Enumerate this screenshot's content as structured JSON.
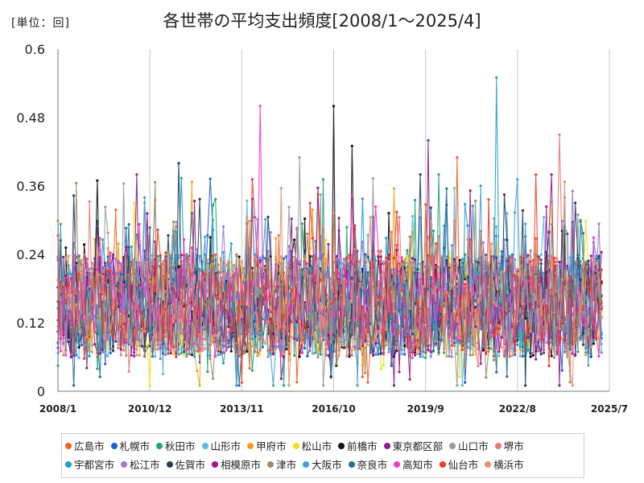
{
  "unit_label": "[単位：回]",
  "chart_data": {
    "type": "line",
    "title": "各世帯の平均支出頻度[2008/1～2025/4]",
    "xlabel": "",
    "ylabel": "",
    "x_start": "2008/1",
    "x_end": "2025/7",
    "x_ticks": [
      "2008/1",
      "2010/12",
      "2013/11",
      "2016/10",
      "2019/9",
      "2022/8",
      "2025/7"
    ],
    "y_ticks": [
      "0",
      "0.12",
      "0.24",
      "0.36",
      "0.48",
      "0.6"
    ],
    "ylim": [
      0,
      0.6
    ],
    "grid": "vertical",
    "legend_position": "bottom",
    "series": [
      {
        "name": "広島市",
        "color": "#f0621e"
      },
      {
        "name": "札幌市",
        "color": "#1f5fd6"
      },
      {
        "name": "秋田市",
        "color": "#1fa57a"
      },
      {
        "name": "山形市",
        "color": "#5bb8e8"
      },
      {
        "name": "甲府市",
        "color": "#f0a020"
      },
      {
        "name": "松山市",
        "color": "#f4e017"
      },
      {
        "name": "前橋市",
        "color": "#111111"
      },
      {
        "name": "東京都区部",
        "color": "#8b1e8b"
      },
      {
        "name": "山口市",
        "color": "#9a9a9a"
      },
      {
        "name": "堺市",
        "color": "#e87878"
      },
      {
        "name": "宇都宮市",
        "color": "#1ea0c8"
      },
      {
        "name": "松江市",
        "color": "#9a78d6"
      },
      {
        "name": "佐賀市",
        "color": "#1f3f5a"
      },
      {
        "name": "相模原市",
        "color": "#a0148c"
      },
      {
        "name": "津市",
        "color": "#a08c64"
      },
      {
        "name": "大阪市",
        "color": "#3ca0dc"
      },
      {
        "name": "奈良市",
        "color": "#2a6e8c"
      },
      {
        "name": "高知市",
        "color": "#f03cc8"
      },
      {
        "name": "仙台市",
        "color": "#ee3c28"
      },
      {
        "name": "横浜市",
        "color": "#e8906c"
      }
    ],
    "notable_peaks": [
      {
        "series": "宇都宮市",
        "x": "2021/12",
        "y": 0.55
      },
      {
        "series": "前橋市",
        "x": "2016/10",
        "y": 0.5
      },
      {
        "series": "高知市",
        "x": "2014/6",
        "y": 0.5
      },
      {
        "series": "堺市",
        "x": "2023/12",
        "y": 0.45
      },
      {
        "series": "東京都区部",
        "x": "2019/10",
        "y": 0.44
      },
      {
        "series": "前橋市",
        "x": "2017/5",
        "y": 0.43
      },
      {
        "series": "山口市",
        "x": "2015/9",
        "y": 0.41
      },
      {
        "series": "広島市",
        "x": "2020/9",
        "y": 0.41
      },
      {
        "series": "佐賀市",
        "x": "2011/11",
        "y": 0.4
      }
    ]
  }
}
